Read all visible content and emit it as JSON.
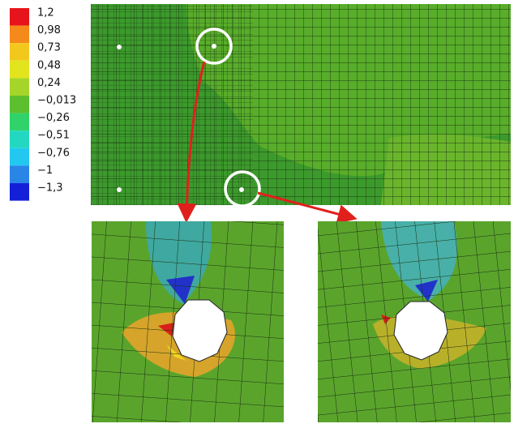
{
  "legend": {
    "labels": [
      "1,2",
      "0,98",
      "0,73",
      "0,48",
      "0,24",
      "−0,013",
      "−0,26",
      "−0,51",
      "−0,76",
      "−1",
      "−1,3"
    ],
    "colors": [
      "#e8141c",
      "#f58a1a",
      "#f2c81c",
      "#e2e41e",
      "#a6d52a",
      "#5cbf2e",
      "#2fd36a",
      "#22d8c0",
      "#22c8f0",
      "#2a86e6",
      "#1420d8"
    ]
  }
}
